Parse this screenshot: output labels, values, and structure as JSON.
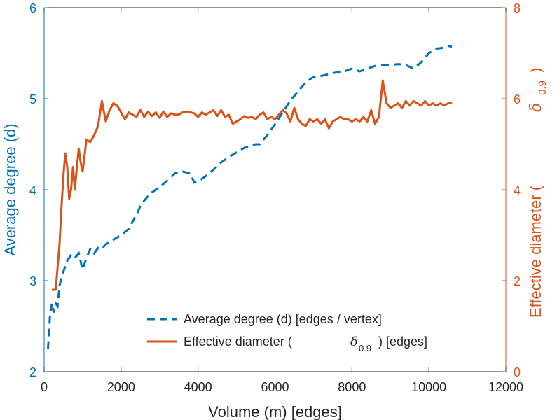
{
  "chart_data": {
    "type": "line",
    "xlabel": "Volume (m) [edges]",
    "ylabel_left": "Average degree (d)",
    "ylabel_right": "Effective diameter (",
    "ylabel_right_math": "δ",
    "ylabel_right_sub": "0.9",
    "ylabel_right_close": ")",
    "xlim": [
      0,
      12000
    ],
    "ylim_left": [
      2,
      6
    ],
    "ylim_right": [
      0,
      8
    ],
    "x_ticks": [
      0,
      2000,
      4000,
      6000,
      8000,
      10000,
      12000
    ],
    "y_ticks_left": [
      2,
      3,
      4,
      5,
      6
    ],
    "y_ticks_right": [
      0,
      2,
      4,
      6,
      8
    ],
    "x_tick_labels": [
      "0",
      "2000",
      "4000",
      "6000",
      "8000",
      "10000",
      "12000"
    ],
    "y_tick_labels_left": [
      "2",
      "3",
      "4",
      "5",
      "6"
    ],
    "y_tick_labels_right": [
      "0",
      "2",
      "4",
      "6",
      "8"
    ],
    "grid": false,
    "legend_position": "bottom-right",
    "colors": {
      "left": "#0072BD",
      "right": "#D95319",
      "axis_text": "#262626"
    },
    "series": [
      {
        "name": "Average degree (d) [edges / vertex]",
        "axis": "left",
        "style": "dashed",
        "x": [
          100,
          150,
          200,
          250,
          300,
          350,
          400,
          500,
          600,
          700,
          800,
          900,
          1000,
          1100,
          1200,
          1300,
          1400,
          1500,
          1600,
          1800,
          2000,
          2200,
          2300,
          2400,
          2500,
          2600,
          2700,
          2800,
          3000,
          3200,
          3400,
          3600,
          3800,
          3900,
          4000,
          4200,
          4400,
          4600,
          4800,
          5000,
          5200,
          5400,
          5500,
          5600,
          5800,
          6000,
          6200,
          6400,
          6600,
          6800,
          7000,
          7200,
          7400,
          7600,
          7800,
          8000,
          8200,
          8400,
          8600,
          8800,
          9000,
          9200,
          9400,
          9600,
          9800,
          10000,
          10200,
          10400,
          10500,
          10600
        ],
        "values": [
          2.25,
          2.6,
          2.75,
          2.65,
          2.75,
          2.72,
          2.95,
          3.1,
          3.22,
          3.28,
          3.25,
          3.3,
          3.12,
          3.25,
          3.35,
          3.3,
          3.36,
          3.35,
          3.4,
          3.45,
          3.5,
          3.57,
          3.65,
          3.72,
          3.82,
          3.88,
          3.93,
          3.97,
          4.03,
          4.1,
          4.18,
          4.2,
          4.18,
          4.08,
          4.09,
          4.15,
          4.22,
          4.3,
          4.36,
          4.41,
          4.46,
          4.49,
          4.5,
          4.5,
          4.6,
          4.72,
          4.85,
          4.98,
          5.08,
          5.18,
          5.24,
          5.25,
          5.27,
          5.29,
          5.3,
          5.33,
          5.3,
          5.33,
          5.36,
          5.37,
          5.37,
          5.38,
          5.37,
          5.33,
          5.4,
          5.5,
          5.55,
          5.56,
          5.58,
          5.57
        ]
      },
      {
        "name": "Effective diameter (",
        "name_math": "δ",
        "name_sub": "0.9",
        "name_suffix": ") [edges]",
        "axis": "right",
        "style": "solid",
        "x": [
          200,
          300,
          400,
          450,
          500,
          550,
          600,
          650,
          700,
          750,
          800,
          850,
          900,
          950,
          1000,
          1100,
          1200,
          1300,
          1400,
          1500,
          1600,
          1700,
          1800,
          1900,
          2000,
          2100,
          2200,
          2300,
          2400,
          2500,
          2600,
          2700,
          2800,
          2900,
          3000,
          3100,
          3200,
          3300,
          3400,
          3500,
          3600,
          3700,
          3800,
          3900,
          4000,
          4100,
          4200,
          4300,
          4400,
          4500,
          4600,
          4700,
          4800,
          4900,
          5000,
          5100,
          5200,
          5300,
          5400,
          5500,
          5600,
          5700,
          5800,
          5900,
          6000,
          6100,
          6200,
          6300,
          6400,
          6500,
          6600,
          6700,
          6800,
          6900,
          7000,
          7100,
          7200,
          7300,
          7400,
          7500,
          7600,
          7700,
          7800,
          7900,
          8000,
          8100,
          8200,
          8300,
          8400,
          8500,
          8600,
          8700,
          8800,
          8900,
          9000,
          9100,
          9200,
          9300,
          9400,
          9500,
          9600,
          9700,
          9800,
          9900,
          10000,
          10100,
          10200,
          10300,
          10400,
          10500,
          10600
        ],
        "values": [
          1.8,
          1.8,
          2.8,
          3.6,
          4.3,
          4.8,
          4.5,
          3.8,
          4.0,
          4.5,
          4.0,
          4.5,
          4.9,
          4.6,
          4.4,
          5.1,
          5.05,
          5.2,
          5.4,
          5.95,
          5.5,
          5.75,
          5.9,
          5.85,
          5.7,
          5.55,
          5.7,
          5.65,
          5.6,
          5.75,
          5.6,
          5.72,
          5.62,
          5.7,
          5.58,
          5.72,
          5.6,
          5.68,
          5.65,
          5.65,
          5.7,
          5.72,
          5.7,
          5.68,
          5.6,
          5.7,
          5.65,
          5.7,
          5.75,
          5.62,
          5.75,
          5.6,
          5.65,
          5.45,
          5.5,
          5.55,
          5.62,
          5.58,
          5.6,
          5.55,
          5.65,
          5.7,
          5.55,
          5.6,
          5.55,
          5.65,
          5.75,
          5.68,
          5.5,
          5.8,
          5.55,
          5.45,
          5.4,
          5.55,
          5.5,
          5.55,
          5.45,
          5.55,
          5.35,
          5.5,
          5.55,
          5.6,
          5.55,
          5.55,
          5.5,
          5.55,
          5.5,
          5.6,
          5.5,
          5.75,
          5.45,
          5.6,
          6.4,
          5.9,
          5.8,
          5.85,
          5.9,
          5.8,
          5.95,
          5.85,
          5.95,
          5.9,
          5.85,
          5.95,
          5.85,
          5.9,
          5.85,
          5.9,
          5.85,
          5.9,
          5.92
        ]
      }
    ]
  }
}
